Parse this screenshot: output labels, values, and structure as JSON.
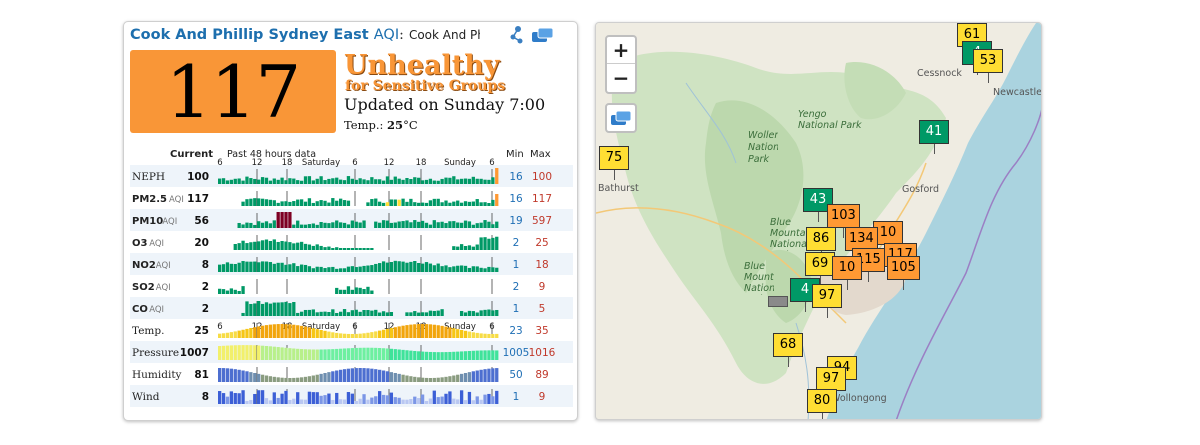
{
  "station": {
    "city": "Cook And Phillip Sydney East",
    "aqi_label": "AQI",
    "colon": ":",
    "subtitle": "Cook And Phillip Sydney East"
  },
  "current": {
    "aqi": "117",
    "status_line1": "Unhealthy",
    "status_line2": "for Sensitive Groups",
    "updated": "Updated on Sunday 7:00",
    "temp_label": "Temp.:",
    "temp_value": "25",
    "temp_unit": "°C",
    "color": "#f99637"
  },
  "table": {
    "col_current": "Current",
    "col_history": "Past 48 hours data",
    "col_min": "Min",
    "col_max": "Max",
    "time_ticks": [
      "6",
      "12",
      "18",
      "Saturday",
      "6",
      "12",
      "18",
      "Sunday",
      "6"
    ],
    "rows": [
      {
        "label": "NEPH",
        "suffix": "",
        "bold": false,
        "current": "100",
        "min": "16",
        "max": "100",
        "style": "bars"
      },
      {
        "label": "PM2.5",
        "suffix": "AQI",
        "bold": true,
        "current": "117",
        "min": "16",
        "max": "117",
        "style": "bars"
      },
      {
        "label": "PM10",
        "suffix": "AQI",
        "bold": true,
        "current": "56",
        "min": "19",
        "max": "597",
        "style": "bars"
      },
      {
        "label": "O3",
        "suffix": "AQI",
        "bold": true,
        "current": "20",
        "min": "2",
        "max": "25",
        "style": "bars"
      },
      {
        "label": "NO2",
        "suffix": "AQI",
        "bold": true,
        "current": "8",
        "min": "1",
        "max": "18",
        "style": "bars"
      },
      {
        "label": "SO2",
        "suffix": "AQI",
        "bold": true,
        "current": "2",
        "min": "2",
        "max": "9",
        "style": "bars"
      },
      {
        "label": "CO",
        "suffix": "AQI",
        "bold": true,
        "current": "2",
        "min": "1",
        "max": "5",
        "style": "bars"
      },
      {
        "label": "Temp.",
        "suffix": "",
        "bold": false,
        "current": "25",
        "min": "23",
        "max": "35",
        "style": "temp"
      },
      {
        "label": "Pressure",
        "suffix": "",
        "bold": false,
        "current": "1007",
        "min": "1005",
        "max": "1016",
        "style": "pressure"
      },
      {
        "label": "Humidity",
        "suffix": "",
        "bold": false,
        "current": "81",
        "min": "50",
        "max": "89",
        "style": "humidity"
      },
      {
        "label": "Wind",
        "suffix": "",
        "bold": false,
        "current": "8",
        "min": "1",
        "max": "9",
        "style": "wind"
      }
    ]
  },
  "colors": {
    "good": "#009966",
    "moderate": "#ffde33",
    "usg": "#ff9933",
    "very_unhealthy": "#7e0023",
    "title_blue": "#1d6fae",
    "min_blue": "#1f6fb5",
    "max_red": "#c0392b"
  },
  "icons": {
    "share": "share-icon",
    "layers": "layers-icon"
  },
  "map": {
    "zoom_in": "+",
    "zoom_out": "−",
    "places": [
      "Cessnock",
      "Newcastle",
      "Yengo National Park",
      "Wollemi National Park",
      "Gosford",
      "Bathurst",
      "Blue Mountains National Park",
      "Blue Mountains National Park",
      "Wollongong"
    ],
    "markers": [
      "61",
      "4",
      "53",
      "41",
      "75",
      "43",
      "103",
      "10",
      "86",
      "134",
      "117",
      "69",
      "115",
      "105",
      "10",
      "4",
      "97",
      "68",
      "94",
      "97",
      "80"
    ]
  }
}
